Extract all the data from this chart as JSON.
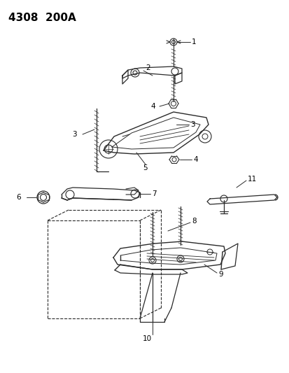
{
  "title": "4308  200A",
  "background_color": "#ffffff",
  "text_color": "#000000",
  "line_color": "#2a2a2a",
  "figsize": [
    4.14,
    5.33
  ],
  "dpi": 100
}
